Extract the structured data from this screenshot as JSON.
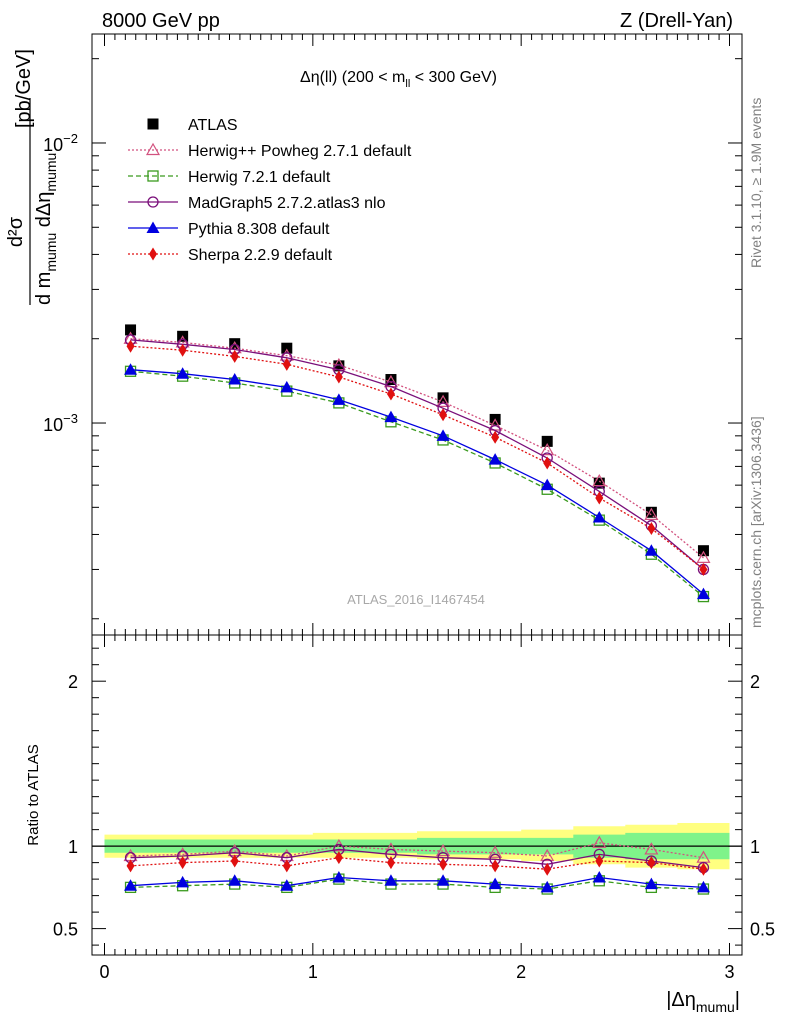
{
  "header": {
    "left": "8000 GeV pp",
    "right": "Z (Drell-Yan)"
  },
  "side_labels": {
    "rivet": "Rivet 3.1.10, ≥ 1.9M events",
    "mcplots": "mcplots.cern.ch [arXiv:1306.3436]"
  },
  "analysis_id": "ATLAS_2016_I1467454",
  "main_title": {
    "prefix": "Δη(ll) (200 < m",
    "sub": "ll",
    "suffix": " < 300 GeV)"
  },
  "ylabel_main": {
    "d2sigma": "d²σ",
    "denominator_a": "d m",
    "denominator_sub_a": "mumu",
    "denominator_b": " dΔη",
    "denominator_sub_b": "mumu",
    "units": "[pb/GeV]"
  },
  "ylabel_ratio": "Ratio to ATLAS",
  "xlabel": {
    "text": "|Δη",
    "sub": "mumu",
    "close": "|"
  },
  "colors": {
    "atlas": "#000000",
    "herwigpp": "#d2527f",
    "herwig7": "#3a9a1e",
    "madgraph": "#7a0f7a",
    "pythia": "#0000e0",
    "sherpa": "#e01010",
    "band_inner": "#7ff38a",
    "band_outer": "#ffff80"
  },
  "chart_data": [
    {
      "type": "line",
      "yscale": "log",
      "xlim": [
        -0.06,
        3.06
      ],
      "ylim": [
        0.000175,
        0.0245
      ],
      "x": [
        0.125,
        0.375,
        0.625,
        0.875,
        1.125,
        1.375,
        1.625,
        1.875,
        2.125,
        2.375,
        2.625,
        2.875
      ],
      "y_ticks": [
        {
          "value": 0.001,
          "base": "10",
          "exp": "−3"
        },
        {
          "value": 0.01,
          "base": "10",
          "exp": "−2"
        }
      ],
      "series": [
        {
          "key": "atlas",
          "name": "ATLAS",
          "marker": "square",
          "line": "none",
          "values": [
            0.00215,
            0.00204,
            0.00192,
            0.00185,
            0.0016,
            0.00143,
            0.00123,
            0.00103,
            0.00086,
            0.00061,
            0.00048,
            0.00035
          ]
        },
        {
          "key": "herwigpp",
          "name": "Herwig++ Powheg 2.7.1 default",
          "marker": "triangle-open",
          "line": "dotted",
          "values": [
            0.002,
            0.00194,
            0.00185,
            0.00174,
            0.00161,
            0.0014,
            0.00119,
            0.00098,
            0.0008,
            0.00062,
            0.00047,
            0.00033
          ]
        },
        {
          "key": "herwig7",
          "name": "Herwig 7.2.1 default",
          "marker": "square-open",
          "line": "dashed",
          "values": [
            0.00153,
            0.00147,
            0.00139,
            0.0013,
            0.00118,
            0.00101,
            0.00087,
            0.00072,
            0.00058,
            0.00045,
            0.00034,
            0.00024
          ]
        },
        {
          "key": "madgraph",
          "name": "MadGraph5 2.7.2.atlas3 nlo",
          "marker": "circle-open",
          "line": "solid",
          "values": [
            0.00198,
            0.00191,
            0.00183,
            0.00171,
            0.00155,
            0.00135,
            0.00113,
            0.00094,
            0.00075,
            0.00057,
            0.00043,
            0.0003
          ]
        },
        {
          "key": "pythia",
          "name": "Pythia 8.308 default",
          "marker": "triangle",
          "line": "solid",
          "values": [
            0.00155,
            0.0015,
            0.00143,
            0.00134,
            0.00121,
            0.00105,
            0.0009,
            0.00074,
            0.0006,
            0.00046,
            0.00035,
            0.000245
          ]
        },
        {
          "key": "sherpa",
          "name": "Sherpa 2.2.9 default",
          "marker": "diamond",
          "line": "dotted",
          "values": [
            0.00188,
            0.00182,
            0.00173,
            0.00162,
            0.00146,
            0.00127,
            0.00107,
            0.00089,
            0.00072,
            0.00054,
            0.00042,
            0.0003
          ]
        }
      ]
    },
    {
      "type": "line",
      "yscale": "linear",
      "xlim": [
        -0.06,
        3.06
      ],
      "ylim": [
        0.34,
        2.28
      ],
      "x": [
        0.125,
        0.375,
        0.625,
        0.875,
        1.125,
        1.375,
        1.625,
        1.875,
        2.125,
        2.375,
        2.625,
        2.875
      ],
      "x_ticks": [
        0,
        1,
        2,
        3
      ],
      "y_ticks": [
        0.5,
        1,
        2
      ],
      "band_inner": {
        "lo": [
          0.96,
          0.96,
          0.96,
          0.96,
          0.96,
          0.96,
          0.95,
          0.95,
          0.95,
          0.93,
          0.92,
          0.92
        ],
        "hi": [
          1.04,
          1.04,
          1.04,
          1.04,
          1.04,
          1.04,
          1.05,
          1.05,
          1.05,
          1.07,
          1.08,
          1.08
        ]
      },
      "band_outer": {
        "lo": [
          0.93,
          0.93,
          0.93,
          0.93,
          0.93,
          0.93,
          0.92,
          0.92,
          0.91,
          0.89,
          0.87,
          0.86
        ],
        "hi": [
          1.07,
          1.07,
          1.07,
          1.07,
          1.08,
          1.08,
          1.09,
          1.09,
          1.1,
          1.12,
          1.13,
          1.14
        ]
      },
      "series": [
        {
          "key": "herwigpp",
          "values": [
            0.94,
            0.95,
            0.97,
            0.94,
            1.0,
            0.98,
            0.97,
            0.96,
            0.94,
            1.02,
            0.98,
            0.93
          ]
        },
        {
          "key": "herwig7",
          "values": [
            0.75,
            0.76,
            0.77,
            0.75,
            0.8,
            0.77,
            0.77,
            0.75,
            0.74,
            0.79,
            0.75,
            0.74
          ]
        },
        {
          "key": "madgraph",
          "values": [
            0.93,
            0.94,
            0.96,
            0.93,
            0.98,
            0.95,
            0.93,
            0.92,
            0.89,
            0.95,
            0.91,
            0.87
          ]
        },
        {
          "key": "pythia",
          "values": [
            0.76,
            0.78,
            0.79,
            0.76,
            0.81,
            0.79,
            0.79,
            0.77,
            0.75,
            0.81,
            0.77,
            0.75
          ]
        },
        {
          "key": "sherpa",
          "values": [
            0.88,
            0.9,
            0.91,
            0.88,
            0.93,
            0.9,
            0.89,
            0.88,
            0.86,
            0.91,
            0.9,
            0.86
          ]
        }
      ]
    }
  ]
}
